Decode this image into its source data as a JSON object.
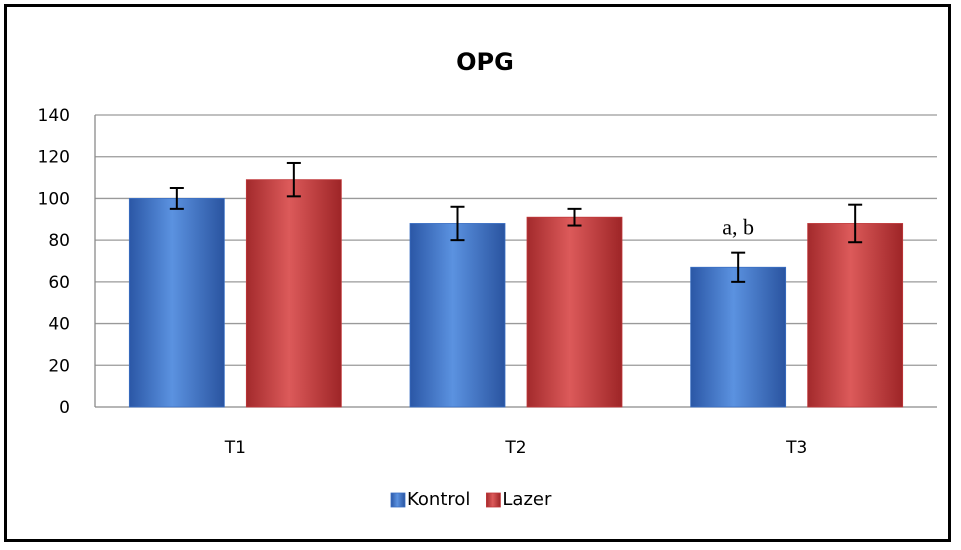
{
  "chart_data": {
    "type": "bar",
    "title": "OPG",
    "xlabel": "",
    "ylabel": "",
    "categories": [
      "T1",
      "T2",
      "T3"
    ],
    "ylim": [
      0,
      140
    ],
    "yticks": [
      0,
      20,
      40,
      60,
      80,
      100,
      120,
      140
    ],
    "grid": true,
    "legend_position": "bottom",
    "series": [
      {
        "name": "Kontrol",
        "color": "#3a6fc4",
        "values": [
          100,
          88,
          67
        ],
        "errors": [
          5,
          8,
          7
        ]
      },
      {
        "name": "Lazer",
        "color": "#c0383a",
        "values": [
          109,
          91,
          88
        ],
        "errors": [
          8,
          4,
          9
        ]
      }
    ],
    "annotations": [
      {
        "text": "a, b",
        "category": "T3",
        "series": "Kontrol"
      }
    ]
  }
}
